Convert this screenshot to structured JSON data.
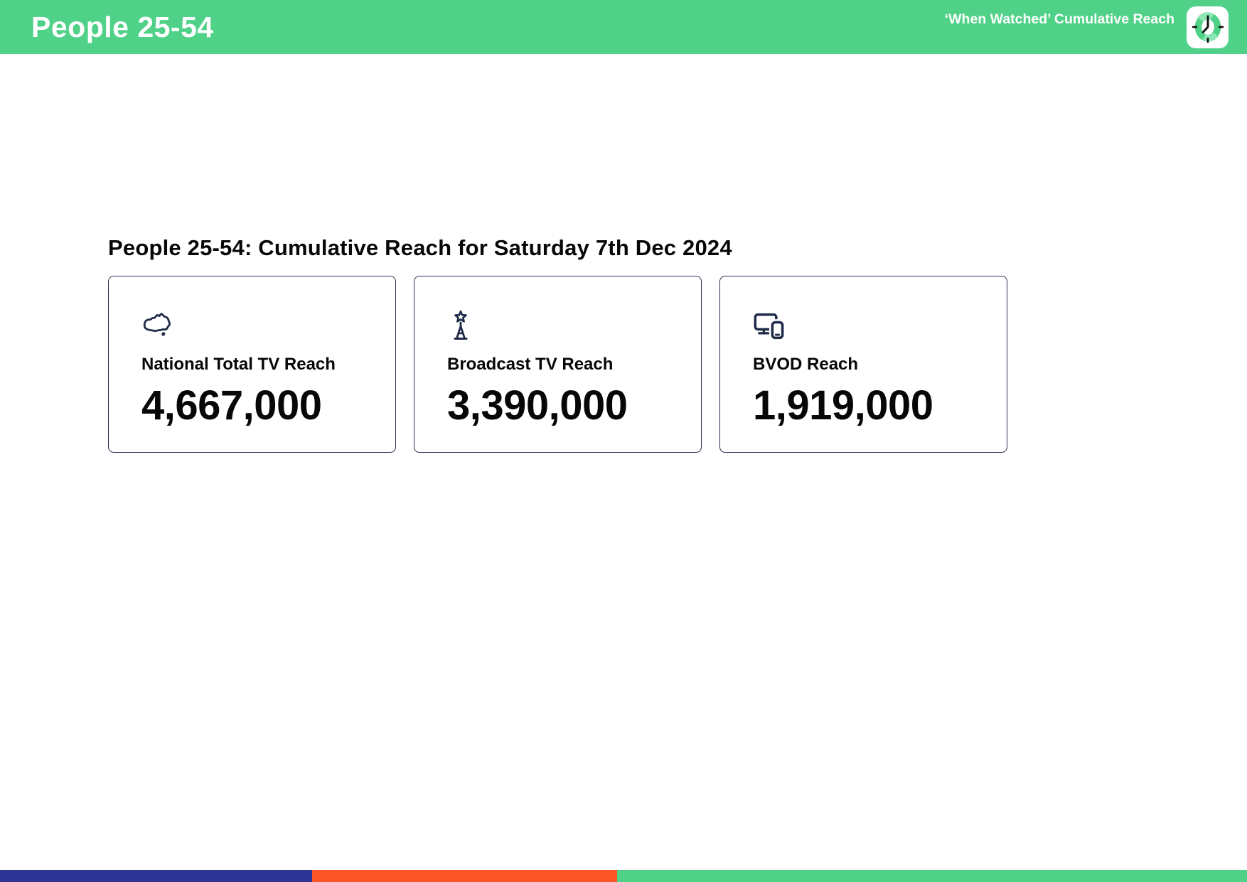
{
  "header": {
    "title": "People 25-54",
    "subtitle": "‘When Watched’ Cumulative Reach",
    "background_color": "#4fd187",
    "text_color": "#ffffff",
    "logo": "clock-badge"
  },
  "main": {
    "heading": "People 25-54: Cumulative Reach for Saturday 7th Dec 2024",
    "cards": [
      {
        "icon": "australia-map-icon",
        "label": "National Total TV Reach",
        "value": "4,667,000"
      },
      {
        "icon": "broadcast-tower-icon",
        "label": "Broadcast TV Reach",
        "value": "3,390,000"
      },
      {
        "icon": "tv-devices-icon",
        "label": "BVOD Reach",
        "value": "1,919,000"
      }
    ],
    "card_border_color": "#24304d",
    "icon_color": "#1e2a47"
  },
  "footer": {
    "segments": [
      {
        "color": "#2d3494",
        "width_pct": 25.0
      },
      {
        "color": "#fb5426",
        "width_pct": 24.5
      },
      {
        "color": "#4fd187",
        "width_pct": 50.5
      }
    ]
  }
}
